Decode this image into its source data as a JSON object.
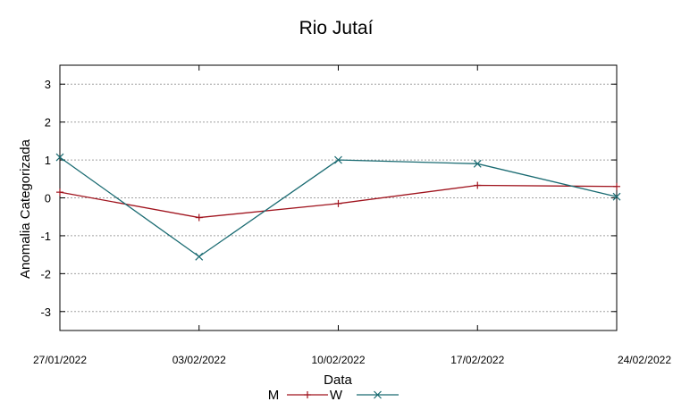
{
  "chart_data": {
    "type": "line",
    "title": "Rio Jutaí",
    "xlabel": "Data",
    "ylabel": "Anomalia Categorizada",
    "x": [
      "27/01/2022",
      "03/02/2022",
      "10/02/2022",
      "17/02/2022",
      "24/02/2022"
    ],
    "ylim": [
      -3.5,
      3.5
    ],
    "yticks": [
      -3,
      -2,
      -1,
      0,
      1,
      2,
      3
    ],
    "grid": true,
    "legend_position": "bottom",
    "series": [
      {
        "name": "M",
        "values": [
          0.15,
          -0.52,
          -0.15,
          0.33,
          0.3
        ],
        "color": "#a0141e",
        "marker": "plus"
      },
      {
        "name": "W",
        "values": [
          1.07,
          -1.55,
          1.0,
          0.9,
          0.03
        ],
        "color": "#1a6b72",
        "marker": "cross"
      }
    ]
  }
}
